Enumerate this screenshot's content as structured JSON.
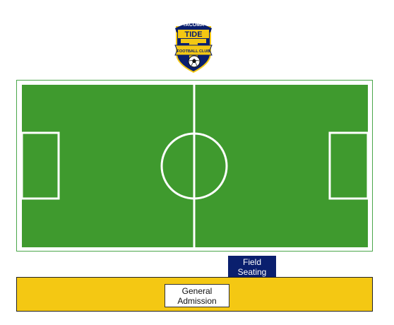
{
  "logo": {
    "top_text": "TACOMA",
    "main_text": "TIDE",
    "banner_text": "FOOTBALL CLUB",
    "colors": {
      "navy": "#0a1f6e",
      "gold": "#f4c813"
    }
  },
  "pitch": {
    "grass_color": "#3f9a2e",
    "line_color": "#ffffff",
    "border_color": "#4aa64a"
  },
  "sections": {
    "field_seating": {
      "line1": "Field",
      "line2": "Seating",
      "color": "#0a1f6e"
    },
    "general_admission": {
      "line1": "General",
      "line2": "Admission",
      "color": "#f4c813"
    }
  }
}
